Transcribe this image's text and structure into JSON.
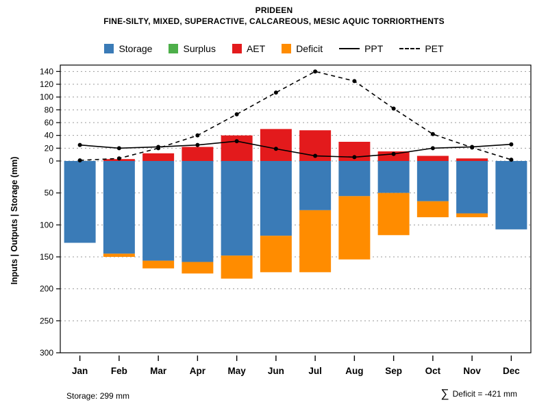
{
  "title": "PRIDEEN",
  "subtitle": "FINE-SILTY, MIXED, SUPERACTIVE, CALCAREOUS, MESIC AQUIC TORRIORTHENTS",
  "y_axis_label": "Inputs | Outputs | Storage  (mm)",
  "footer": {
    "storage_note": "Storage: 299 mm",
    "deficit_sigma": "∑",
    "deficit_note": "Deficit = -421 mm"
  },
  "legend": [
    {
      "label": "Storage",
      "type": "box",
      "color": "#3a7bb7"
    },
    {
      "label": "Surplus",
      "type": "box",
      "color": "#4daf4a"
    },
    {
      "label": "AET",
      "type": "box",
      "color": "#e31a1c"
    },
    {
      "label": "Deficit",
      "type": "box",
      "color": "#ff8c00"
    },
    {
      "label": "PPT",
      "type": "line-solid",
      "color": "#000000"
    },
    {
      "label": "PET",
      "type": "line-dashed",
      "color": "#000000"
    }
  ],
  "chart_data": {
    "type": "bar",
    "title": "PRIDEEN soil water balance",
    "categories": [
      "Jan",
      "Feb",
      "Mar",
      "Apr",
      "May",
      "Jun",
      "Jul",
      "Aug",
      "Sep",
      "Oct",
      "Nov",
      "Dec"
    ],
    "series": [
      {
        "name": "AET",
        "kind": "bar-up",
        "color": "#e31a1c",
        "values": [
          0,
          3,
          12,
          22,
          40,
          50,
          48,
          30,
          15,
          8,
          4,
          0
        ]
      },
      {
        "name": "Surplus",
        "kind": "bar-up",
        "color": "#4daf4a",
        "values": [
          0,
          0,
          0,
          0,
          0,
          0,
          0,
          0,
          0,
          0,
          0,
          0
        ]
      },
      {
        "name": "Storage",
        "kind": "bar-down",
        "color": "#3a7bb7",
        "values": [
          128,
          145,
          156,
          158,
          148,
          117,
          77,
          55,
          50,
          63,
          82,
          107
        ]
      },
      {
        "name": "Deficit",
        "kind": "bar-down-stacked",
        "color": "#ff8c00",
        "values": [
          0,
          5,
          12,
          18,
          36,
          57,
          97,
          99,
          66,
          25,
          6,
          0
        ]
      },
      {
        "name": "PPT",
        "kind": "line-solid",
        "color": "#000000",
        "values": [
          25,
          20,
          22,
          25,
          31,
          19,
          8,
          6,
          11,
          20,
          22,
          26
        ]
      },
      {
        "name": "PET",
        "kind": "line-dashed",
        "color": "#000000",
        "values": [
          1,
          4,
          20,
          40,
          73,
          107,
          140,
          125,
          82,
          42,
          21,
          2
        ]
      }
    ],
    "y_ticks_up": [
      0,
      20,
      40,
      60,
      80,
      100,
      120,
      140
    ],
    "y_ticks_down": [
      50,
      100,
      150,
      200,
      250,
      300
    ],
    "ylim_up": 150,
    "ylim_down": 300,
    "grid": true,
    "legend_position": "top",
    "xlabel": "",
    "ylabel": "Inputs | Outputs | Storage  (mm)"
  }
}
